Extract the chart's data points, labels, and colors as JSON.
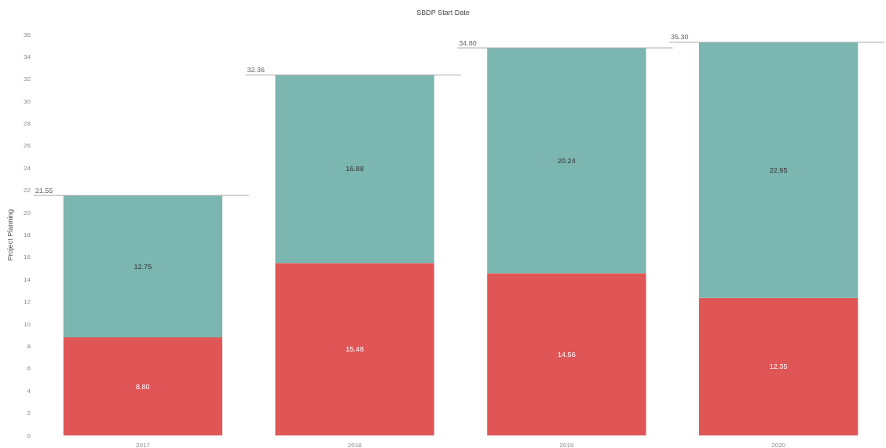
{
  "chart_data": {
    "type": "bar",
    "title": "SBDP Start Date",
    "ylabel": "Project Planning",
    "categories": [
      "2017",
      "2018",
      "2019",
      "2020"
    ],
    "stacked": true,
    "series": [
      {
        "color": "#e05657",
        "values": [
          8.8,
          15.48,
          14.56,
          12.35
        ],
        "value_labels": [
          "8.80",
          "15.48",
          "14.56",
          "12.35"
        ]
      },
      {
        "color": "#7bb6b1",
        "values": [
          12.75,
          16.88,
          20.24,
          22.95
        ],
        "value_labels": [
          "12.75",
          "16.88",
          "20.24",
          "22.95"
        ]
      }
    ],
    "totals": [
      "21.55",
      "32.36",
      "34.80",
      "35.30"
    ],
    "ylim": [
      0,
      36
    ],
    "yticks": [
      0,
      2,
      4,
      6,
      8,
      10,
      12,
      14,
      16,
      18,
      20,
      22,
      24,
      26,
      28,
      30,
      32,
      34,
      36
    ],
    "grid": false
  }
}
